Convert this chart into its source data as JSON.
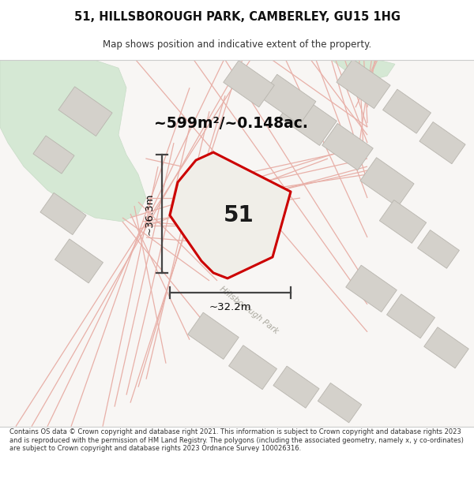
{
  "title": "51, HILLSBOROUGH PARK, CAMBERLEY, GU15 1HG",
  "subtitle": "Map shows position and indicative extent of the property.",
  "footer": "Contains OS data © Crown copyright and database right 2021. This information is subject to Crown copyright and database rights 2023 and is reproduced with the permission of HM Land Registry. The polygons (including the associated geometry, namely x, y co-ordinates) are subject to Crown copyright and database rights 2023 Ordnance Survey 100026316.",
  "area_label": "~599m²/~0.148ac.",
  "property_number": "51",
  "dim_height": "~36.3m",
  "dim_width": "~32.2m",
  "road_label": "Hillsborough Park",
  "map_bg": "#f8f6f4",
  "green_color": "#d5e8d4",
  "green_edge": "#c8dcc7",
  "building_fill": "#d8d5cf",
  "building_edge": "#c0bdb6",
  "property_fill": "#f0eee8",
  "property_stroke": "#cc0000",
  "line_color": "#444444",
  "road_line_color": "#e8b0a8",
  "road_fill": "#f0ebe3",
  "title_color": "#111111",
  "subtitle_color": "#333333",
  "footer_color": "#333333"
}
